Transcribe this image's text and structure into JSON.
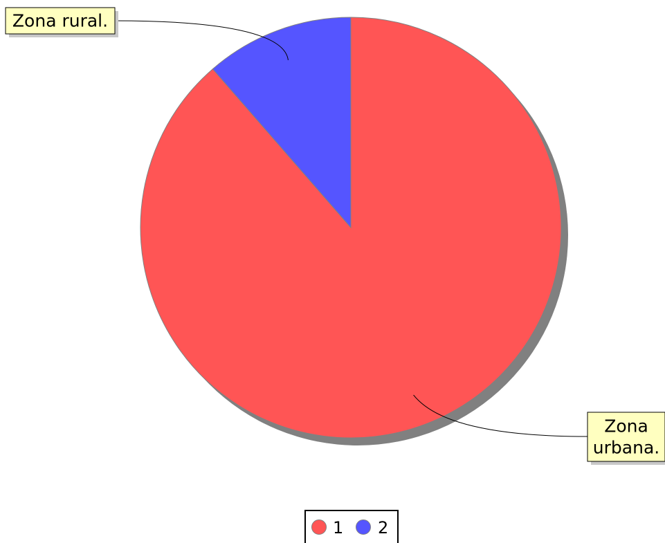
{
  "chart_data": {
    "type": "pie",
    "categories": [
      "Zona urbana.",
      "Zona rural."
    ],
    "values": [
      88.6,
      11.4
    ],
    "colors": [
      "#ff5555",
      "#5555ff"
    ],
    "callout_background": "#ffffc0",
    "shadow_color": "#808080",
    "slice_labels": [
      [
        "Zona",
        "urbana."
      ],
      [
        "Zona rural."
      ]
    ],
    "legend": {
      "entries": [
        "1",
        "2"
      ],
      "placement": "bottom-center"
    }
  }
}
